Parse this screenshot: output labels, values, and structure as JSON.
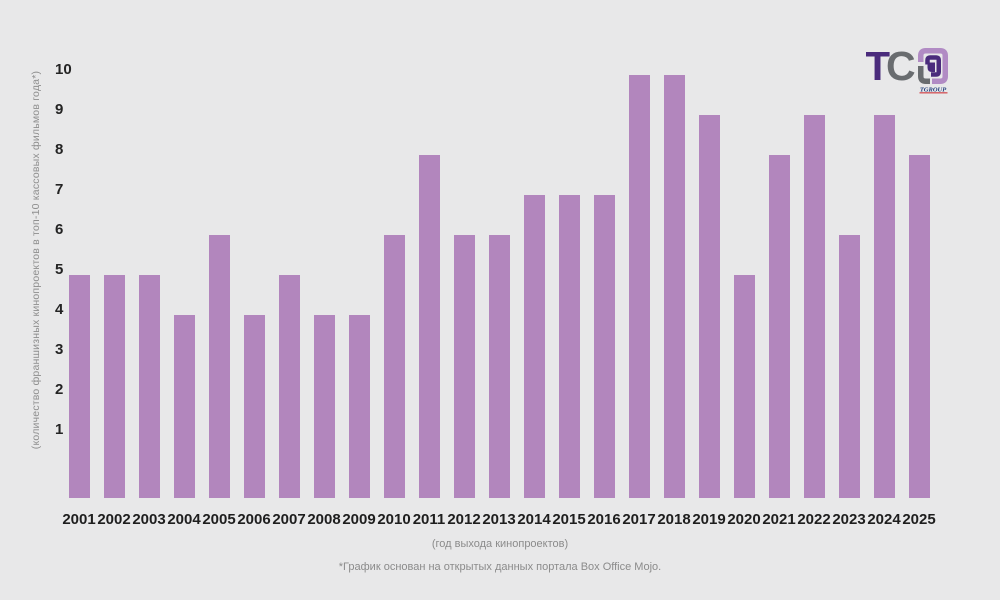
{
  "page": {
    "background": "#e8e8e9"
  },
  "logo": {
    "letter_t": "T",
    "letter_c": "C",
    "subtext": "TGROUP",
    "colors": {
      "letter_t": "#4a2b7c",
      "letter_c": "#696c6f",
      "mark_light_purple": "#b18bc4",
      "mark_dark_purple": "#4a2b7c",
      "mark_gray": "#696c6f",
      "underline_red": "#cf3339",
      "subtext_blue": "#1c3a78"
    }
  },
  "chart_data": {
    "type": "bar",
    "categories": [
      "2001",
      "2002",
      "2003",
      "2004",
      "2005",
      "2006",
      "2007",
      "2008",
      "2009",
      "2010",
      "2011",
      "2012",
      "2013",
      "2014",
      "2015",
      "2016",
      "2017",
      "2018",
      "2019",
      "2020",
      "2021",
      "2022",
      "2023",
      "2024",
      "2025"
    ],
    "values": [
      5,
      5,
      5,
      4,
      6,
      4,
      5,
      4,
      4,
      6,
      8,
      6,
      6,
      7,
      7,
      7,
      10,
      10,
      9,
      5,
      8,
      9,
      6,
      9,
      8
    ],
    "y_ticks": [
      1,
      2,
      3,
      4,
      5,
      6,
      7,
      8,
      9,
      10
    ],
    "ylim": [
      0,
      10
    ],
    "grid": false,
    "legend": false,
    "bar_color": "#b286bd",
    "ylabel": "(количество франшизных кинопроектов в топ-10 кассовых фильмов года*)",
    "xlabel": "(год выхода кинопроектов)",
    "footnote": "*График основан на открытых данных портала Box Office Mojo."
  }
}
